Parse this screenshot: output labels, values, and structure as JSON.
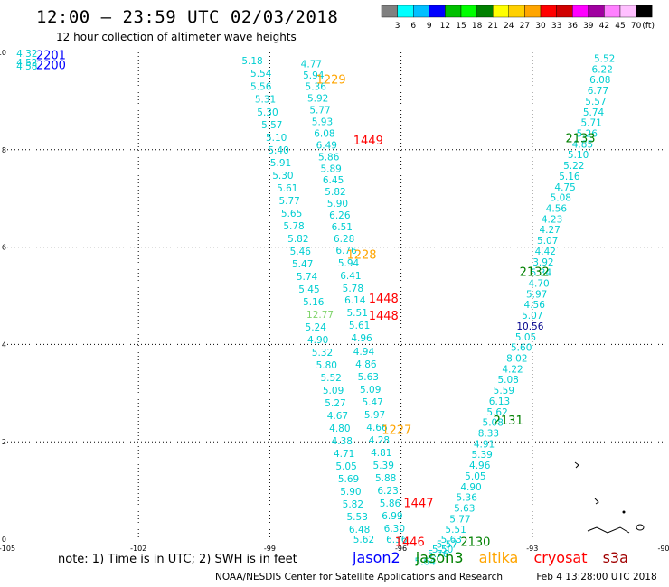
{
  "header": {
    "title": "12:00 — 23:59 UTC 02/03/2018",
    "subtitle": "12 hour collection of altimeter wave heights"
  },
  "color_scale": {
    "labels": [
      "3",
      "6",
      "9",
      "12",
      "15",
      "18",
      "21",
      "24",
      "27",
      "30",
      "33",
      "36",
      "39",
      "42",
      "45",
      "70"
    ],
    "unit": "(ft)",
    "colors": [
      "#808080",
      "#00ffff",
      "#00bfff",
      "#0000ff",
      "#00c000",
      "#00ff00",
      "#008000",
      "#ffff00",
      "#ffd000",
      "#ffa500",
      "#ff0000",
      "#d00000",
      "#ff00ff",
      "#a000a0",
      "#ff80ff",
      "#ffc0ff",
      "#000000"
    ]
  },
  "footnote": {
    "note": "note: 1) Time is in UTC; 2) SWH is in feet",
    "satellites": [
      {
        "name": "jason2",
        "color": "#0000ff"
      },
      {
        "name": "jason3",
        "color": "#008000"
      },
      {
        "name": "altika",
        "color": "#ffa500"
      },
      {
        "name": "cryosat",
        "color": "#ff0000"
      },
      {
        "name": "s3a",
        "color": "#a00000"
      }
    ],
    "credit": "NOAA/NESDIS Center for Satellite Applications and Research",
    "timestamp": "Feb  4 13:28:00 UTC 2018"
  },
  "chart_data": {
    "type": "scatter",
    "xlim": [
      -105,
      -90
    ],
    "ylim": [
      0,
      10
    ],
    "x_ticks": [
      -105,
      -102,
      -99,
      -96,
      -93,
      -90
    ],
    "y_ticks": [
      0,
      2,
      4,
      6,
      8,
      10
    ],
    "grid": true,
    "time_labels": [
      {
        "text": "2201",
        "x": -104.0,
        "y": 9.95,
        "color": "#0000ff"
      },
      {
        "text": "2200",
        "x": -104.0,
        "y": 9.75,
        "color": "#0000ff"
      },
      {
        "text": "1229",
        "x": -97.6,
        "y": 9.45,
        "color": "#ffa500"
      },
      {
        "text": "1449",
        "x": -96.75,
        "y": 8.2,
        "color": "#ff0000"
      },
      {
        "text": "2133",
        "x": -91.9,
        "y": 8.25,
        "color": "#008000"
      },
      {
        "text": "1228",
        "x": -96.9,
        "y": 5.85,
        "color": "#ffa500"
      },
      {
        "text": "2132",
        "x": -92.95,
        "y": 5.5,
        "color": "#008000"
      },
      {
        "text": "1448",
        "x": -96.4,
        "y": 4.95,
        "color": "#ff0000"
      },
      {
        "text": "1448",
        "x": -96.4,
        "y": 4.6,
        "color": "#ff0000"
      },
      {
        "text": "2131",
        "x": -93.55,
        "y": 2.45,
        "color": "#008000"
      },
      {
        "text": "1227",
        "x": -96.1,
        "y": 2.25,
        "color": "#ffa500"
      },
      {
        "text": "1447",
        "x": -95.6,
        "y": 0.75,
        "color": "#ff0000"
      },
      {
        "text": "1446",
        "x": -95.8,
        "y": -0.05,
        "color": "#ff0000"
      },
      {
        "text": "2130",
        "x": -94.3,
        "y": -0.05,
        "color": "#008000"
      }
    ],
    "points": [
      {
        "x": -104.55,
        "y": 9.98,
        "v": "4.32",
        "color": "#00ced1"
      },
      {
        "x": -104.55,
        "y": 9.8,
        "v": "4.52",
        "color": "#00ced1"
      },
      {
        "x": -104.55,
        "y": 9.72,
        "v": "4.58",
        "color": "#00ced1"
      },
      {
        "x": -99.4,
        "y": 9.83,
        "v": "5.18",
        "color": "#00ced1"
      },
      {
        "x": -99.2,
        "y": 9.57,
        "v": "5.54",
        "color": "#00ced1"
      },
      {
        "x": -99.2,
        "y": 9.3,
        "v": "5.56",
        "color": "#00ced1"
      },
      {
        "x": -99.1,
        "y": 9.04,
        "v": "5.31",
        "color": "#00ced1"
      },
      {
        "x": -99.05,
        "y": 8.78,
        "v": "5.30",
        "color": "#00ced1"
      },
      {
        "x": -98.95,
        "y": 8.52,
        "v": "5.57",
        "color": "#00ced1"
      },
      {
        "x": -98.85,
        "y": 8.26,
        "v": "5.10",
        "color": "#00ced1"
      },
      {
        "x": -98.8,
        "y": 8.0,
        "v": "5.40",
        "color": "#00ced1"
      },
      {
        "x": -98.75,
        "y": 7.74,
        "v": "5.91",
        "color": "#00ced1"
      },
      {
        "x": -98.7,
        "y": 7.48,
        "v": "5.30",
        "color": "#00ced1"
      },
      {
        "x": -98.6,
        "y": 7.22,
        "v": "5.61",
        "color": "#00ced1"
      },
      {
        "x": -98.55,
        "y": 6.96,
        "v": "5.77",
        "color": "#00ced1"
      },
      {
        "x": -98.5,
        "y": 6.7,
        "v": "5.65",
        "color": "#00ced1"
      },
      {
        "x": -98.45,
        "y": 6.44,
        "v": "5.78",
        "color": "#00ced1"
      },
      {
        "x": -98.35,
        "y": 6.18,
        "v": "5.82",
        "color": "#00ced1"
      },
      {
        "x": -98.3,
        "y": 5.92,
        "v": "5.46",
        "color": "#00ced1"
      },
      {
        "x": -98.25,
        "y": 5.66,
        "v": "5.47",
        "color": "#00ced1"
      },
      {
        "x": -98.15,
        "y": 5.4,
        "v": "5.74",
        "color": "#00ced1"
      },
      {
        "x": -98.1,
        "y": 5.14,
        "v": "5.45",
        "color": "#00ced1"
      },
      {
        "x": -98.0,
        "y": 4.88,
        "v": "5.16",
        "color": "#00ced1"
      },
      {
        "x": -97.85,
        "y": 4.62,
        "v": "12.77",
        "color": "#7fd46a"
      },
      {
        "x": -97.95,
        "y": 4.36,
        "v": "5.24",
        "color": "#00ced1"
      },
      {
        "x": -97.9,
        "y": 4.1,
        "v": "4.90",
        "color": "#00ced1"
      },
      {
        "x": -97.8,
        "y": 3.84,
        "v": "5.32",
        "color": "#00ced1"
      },
      {
        "x": -97.7,
        "y": 3.58,
        "v": "5.80",
        "color": "#00ced1"
      },
      {
        "x": -97.6,
        "y": 3.32,
        "v": "5.52",
        "color": "#00ced1"
      },
      {
        "x": -97.55,
        "y": 3.06,
        "v": "5.09",
        "color": "#00ced1"
      },
      {
        "x": -97.5,
        "y": 2.8,
        "v": "5.27",
        "color": "#00ced1"
      },
      {
        "x": -97.45,
        "y": 2.54,
        "v": "4.67",
        "color": "#00ced1"
      },
      {
        "x": -97.4,
        "y": 2.28,
        "v": "4.80",
        "color": "#00ced1"
      },
      {
        "x": -97.35,
        "y": 2.02,
        "v": "4.38",
        "color": "#00ced1"
      },
      {
        "x": -97.3,
        "y": 1.76,
        "v": "4.71",
        "color": "#00ced1"
      },
      {
        "x": -97.25,
        "y": 1.5,
        "v": "5.05",
        "color": "#00ced1"
      },
      {
        "x": -97.2,
        "y": 1.24,
        "v": "5.69",
        "color": "#00ced1"
      },
      {
        "x": -97.15,
        "y": 0.98,
        "v": "5.90",
        "color": "#00ced1"
      },
      {
        "x": -97.1,
        "y": 0.72,
        "v": "5.82",
        "color": "#00ced1"
      },
      {
        "x": -97.0,
        "y": 0.46,
        "v": "5.53",
        "color": "#00ced1"
      },
      {
        "x": -96.95,
        "y": 0.2,
        "v": "6.48",
        "color": "#00ced1"
      },
      {
        "x": -96.85,
        "y": 0.0,
        "v": "5.62",
        "color": "#00ced1"
      },
      {
        "x": -98.05,
        "y": 9.77,
        "v": "4.77",
        "color": "#00ced1"
      },
      {
        "x": -98.0,
        "y": 9.54,
        "v": "5.94",
        "color": "#00ced1"
      },
      {
        "x": -97.95,
        "y": 9.3,
        "v": "5.36",
        "color": "#00ced1"
      },
      {
        "x": -97.9,
        "y": 9.06,
        "v": "5.92",
        "color": "#00ced1"
      },
      {
        "x": -97.85,
        "y": 8.82,
        "v": "5.77",
        "color": "#00ced1"
      },
      {
        "x": -97.8,
        "y": 8.58,
        "v": "5.93",
        "color": "#00ced1"
      },
      {
        "x": -97.75,
        "y": 8.34,
        "v": "6.08",
        "color": "#00ced1"
      },
      {
        "x": -97.7,
        "y": 8.1,
        "v": "6.49",
        "color": "#00ced1"
      },
      {
        "x": -97.65,
        "y": 7.86,
        "v": "5.86",
        "color": "#00ced1"
      },
      {
        "x": -97.6,
        "y": 7.62,
        "v": "5.89",
        "color": "#00ced1"
      },
      {
        "x": -97.55,
        "y": 7.38,
        "v": "6.45",
        "color": "#00ced1"
      },
      {
        "x": -97.5,
        "y": 7.14,
        "v": "5.82",
        "color": "#00ced1"
      },
      {
        "x": -97.45,
        "y": 6.9,
        "v": "5.90",
        "color": "#00ced1"
      },
      {
        "x": -97.4,
        "y": 6.66,
        "v": "6.26",
        "color": "#00ced1"
      },
      {
        "x": -97.35,
        "y": 6.42,
        "v": "6.51",
        "color": "#00ced1"
      },
      {
        "x": -97.3,
        "y": 6.18,
        "v": "6.28",
        "color": "#00ced1"
      },
      {
        "x": -97.25,
        "y": 5.94,
        "v": "6.76",
        "color": "#00ced1"
      },
      {
        "x": -97.2,
        "y": 5.68,
        "v": "5.94",
        "color": "#00ced1"
      },
      {
        "x": -97.15,
        "y": 5.42,
        "v": "6.41",
        "color": "#00ced1"
      },
      {
        "x": -97.1,
        "y": 5.16,
        "v": "5.78",
        "color": "#00ced1"
      },
      {
        "x": -97.05,
        "y": 4.92,
        "v": "6.14",
        "color": "#00ced1"
      },
      {
        "x": -97.0,
        "y": 4.66,
        "v": "5.51",
        "color": "#00ced1"
      },
      {
        "x": -96.95,
        "y": 4.4,
        "v": "5.61",
        "color": "#00ced1"
      },
      {
        "x": -96.9,
        "y": 4.14,
        "v": "4.96",
        "color": "#00ced1"
      },
      {
        "x": -96.85,
        "y": 3.86,
        "v": "4.94",
        "color": "#00ced1"
      },
      {
        "x": -96.8,
        "y": 3.6,
        "v": "4.86",
        "color": "#00ced1"
      },
      {
        "x": -96.75,
        "y": 3.34,
        "v": "5.63",
        "color": "#00ced1"
      },
      {
        "x": -96.7,
        "y": 3.08,
        "v": "5.09",
        "color": "#00ced1"
      },
      {
        "x": -96.65,
        "y": 2.82,
        "v": "5.47",
        "color": "#00ced1"
      },
      {
        "x": -96.6,
        "y": 2.56,
        "v": "5.97",
        "color": "#00ced1"
      },
      {
        "x": -96.55,
        "y": 2.3,
        "v": "4.66",
        "color": "#00ced1"
      },
      {
        "x": -96.5,
        "y": 2.04,
        "v": "4.28",
        "color": "#00ced1"
      },
      {
        "x": -96.45,
        "y": 1.78,
        "v": "4.81",
        "color": "#00ced1"
      },
      {
        "x": -96.4,
        "y": 1.52,
        "v": "5.39",
        "color": "#00ced1"
      },
      {
        "x": -96.35,
        "y": 1.26,
        "v": "5.88",
        "color": "#00ced1"
      },
      {
        "x": -96.3,
        "y": 1.0,
        "v": "6.23",
        "color": "#00ced1"
      },
      {
        "x": -96.25,
        "y": 0.74,
        "v": "5.86",
        "color": "#00ced1"
      },
      {
        "x": -96.2,
        "y": 0.48,
        "v": "6.99",
        "color": "#00ced1"
      },
      {
        "x": -96.15,
        "y": 0.22,
        "v": "6.30",
        "color": "#00ced1"
      },
      {
        "x": -96.1,
        "y": 0.0,
        "v": "6.36",
        "color": "#00ced1"
      },
      {
        "x": -91.35,
        "y": 9.88,
        "v": "5.52",
        "color": "#00ced1"
      },
      {
        "x": -91.4,
        "y": 9.66,
        "v": "6.22",
        "color": "#00ced1"
      },
      {
        "x": -91.45,
        "y": 9.44,
        "v": "6.08",
        "color": "#00ced1"
      },
      {
        "x": -91.5,
        "y": 9.22,
        "v": "6.77",
        "color": "#00ced1"
      },
      {
        "x": -91.55,
        "y": 9.0,
        "v": "5.57",
        "color": "#00ced1"
      },
      {
        "x": -91.6,
        "y": 8.78,
        "v": "5.74",
        "color": "#00ced1"
      },
      {
        "x": -91.65,
        "y": 8.56,
        "v": "5.71",
        "color": "#00ced1"
      },
      {
        "x": -91.75,
        "y": 8.34,
        "v": "5.26",
        "color": "#00ced1"
      },
      {
        "x": -91.85,
        "y": 8.12,
        "v": "4.85",
        "color": "#00ced1"
      },
      {
        "x": -91.95,
        "y": 7.9,
        "v": "5.10",
        "color": "#00ced1"
      },
      {
        "x": -92.05,
        "y": 7.68,
        "v": "5.22",
        "color": "#00ced1"
      },
      {
        "x": -92.15,
        "y": 7.46,
        "v": "5.16",
        "color": "#00ced1"
      },
      {
        "x": -92.25,
        "y": 7.24,
        "v": "4.75",
        "color": "#00ced1"
      },
      {
        "x": -92.35,
        "y": 7.02,
        "v": "5.08",
        "color": "#00ced1"
      },
      {
        "x": -92.45,
        "y": 6.8,
        "v": "4.56",
        "color": "#00ced1"
      },
      {
        "x": -92.55,
        "y": 6.58,
        "v": "4.23",
        "color": "#00ced1"
      },
      {
        "x": -92.6,
        "y": 6.36,
        "v": "4.27",
        "color": "#00ced1"
      },
      {
        "x": -92.65,
        "y": 6.14,
        "v": "5.07",
        "color": "#00ced1"
      },
      {
        "x": -92.7,
        "y": 5.92,
        "v": "4.42",
        "color": "#00ced1"
      },
      {
        "x": -92.75,
        "y": 5.7,
        "v": "3.92",
        "color": "#00ced1"
      },
      {
        "x": -92.8,
        "y": 5.48,
        "v": "5.34",
        "color": "#00ced1"
      },
      {
        "x": -92.85,
        "y": 5.26,
        "v": "4.70",
        "color": "#00ced1"
      },
      {
        "x": -92.9,
        "y": 5.04,
        "v": "5.97",
        "color": "#00ced1"
      },
      {
        "x": -92.95,
        "y": 4.82,
        "v": "4.56",
        "color": "#00ced1"
      },
      {
        "x": -93.0,
        "y": 4.6,
        "v": "5.07",
        "color": "#00ced1"
      },
      {
        "x": -93.05,
        "y": 4.38,
        "v": "10.56",
        "color": "#00008b"
      },
      {
        "x": -93.15,
        "y": 4.16,
        "v": "5.05",
        "color": "#00ced1"
      },
      {
        "x": -93.25,
        "y": 3.94,
        "v": "5.60",
        "color": "#00ced1"
      },
      {
        "x": -93.35,
        "y": 3.72,
        "v": "8.02",
        "color": "#00ced1"
      },
      {
        "x": -93.45,
        "y": 3.5,
        "v": "4.22",
        "color": "#00ced1"
      },
      {
        "x": -93.55,
        "y": 3.28,
        "v": "5.08",
        "color": "#00ced1"
      },
      {
        "x": -93.65,
        "y": 3.06,
        "v": "5.59",
        "color": "#00ced1"
      },
      {
        "x": -93.75,
        "y": 2.84,
        "v": "6.13",
        "color": "#00ced1"
      },
      {
        "x": -93.8,
        "y": 2.62,
        "v": "5.62",
        "color": "#00ced1"
      },
      {
        "x": -93.9,
        "y": 2.4,
        "v": "5.08",
        "color": "#00ced1"
      },
      {
        "x": -94.0,
        "y": 2.18,
        "v": "8.33",
        "color": "#00ced1"
      },
      {
        "x": -94.1,
        "y": 1.96,
        "v": "4.91",
        "color": "#00ced1"
      },
      {
        "x": -94.15,
        "y": 1.74,
        "v": "5.39",
        "color": "#00ced1"
      },
      {
        "x": -94.2,
        "y": 1.52,
        "v": "4.96",
        "color": "#00ced1"
      },
      {
        "x": -94.3,
        "y": 1.3,
        "v": "5.05",
        "color": "#00ced1"
      },
      {
        "x": -94.4,
        "y": 1.08,
        "v": "4.90",
        "color": "#00ced1"
      },
      {
        "x": -94.5,
        "y": 0.86,
        "v": "5.36",
        "color": "#00ced1"
      },
      {
        "x": -94.55,
        "y": 0.64,
        "v": "5.63",
        "color": "#00ced1"
      },
      {
        "x": -94.65,
        "y": 0.42,
        "v": "5.77",
        "color": "#00ced1"
      },
      {
        "x": -94.75,
        "y": 0.2,
        "v": "5.51",
        "color": "#00ced1"
      },
      {
        "x": -94.85,
        "y": 0.0,
        "v": "5.63",
        "color": "#00ced1"
      },
      {
        "x": -94.95,
        "y": -0.1,
        "v": "5.57",
        "color": "#00ced1"
      },
      {
        "x": -95.05,
        "y": -0.2,
        "v": "5.50",
        "color": "#00ced1"
      },
      {
        "x": -95.15,
        "y": -0.3,
        "v": "5.76",
        "color": "#00ced1"
      },
      {
        "x": -95.45,
        "y": -0.45,
        "v": "5.64",
        "color": "#00ced1"
      }
    ]
  }
}
